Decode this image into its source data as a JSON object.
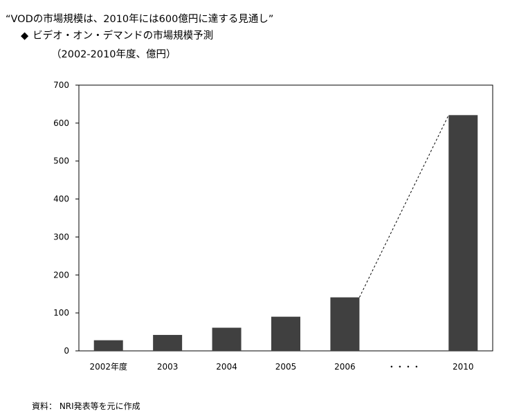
{
  "header": {
    "title": "“VODの市場規模は、2010年には600億円に達する見通し”",
    "subtitle_marker": "◆",
    "subtitle": "ビデオ・オン・デマンドの市場規模予測",
    "subtitle_period": "（2002-2010年度、億円）"
  },
  "footer": {
    "source": "資料：  NRI発表等を元に作成"
  },
  "colors": {
    "bar": "#404040",
    "axis": "#000000"
  },
  "chart_data": {
    "type": "bar",
    "title": "ビデオ・オン・デマンドの市場規模予測",
    "categories": [
      "2002年度",
      "2003",
      "2004",
      "2005",
      "2006",
      "・・・・",
      "2010"
    ],
    "values": [
      28,
      42,
      61,
      90,
      141,
      null,
      621
    ],
    "ylim": [
      0,
      700
    ],
    "yticks": [
      0,
      100,
      200,
      300,
      400,
      500,
      600,
      700
    ],
    "grid": false,
    "legend": "none",
    "annotations": [
      {
        "type": "dashed-line",
        "from_category": "2006",
        "to_category": "2010"
      }
    ]
  }
}
